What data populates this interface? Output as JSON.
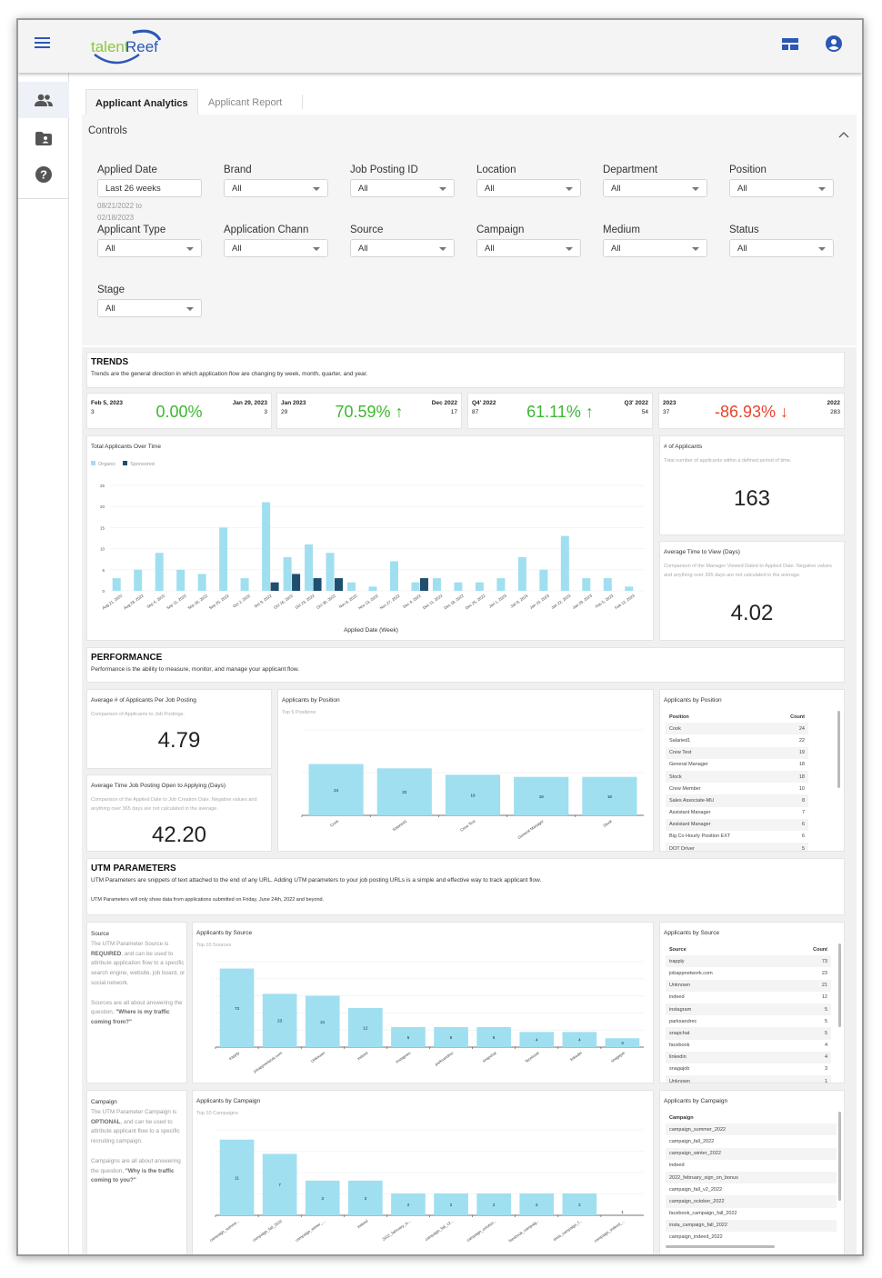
{
  "app": {
    "logo_part1": "talent",
    "logo_part2": "Reef",
    "colors": {
      "brand_blue": "#2b57b5",
      "logo_green": "#8cc63f",
      "organic": "#a0dff0",
      "sponsored": "#1f4e6e",
      "positive": "#3db730",
      "negative": "#e8442f"
    }
  },
  "header": {
    "icons": [
      "menu-icon",
      "layout-icon",
      "account-icon"
    ]
  },
  "sidebar": {
    "items": [
      {
        "icon": "people-icon",
        "active": true
      },
      {
        "icon": "folder-user-icon"
      },
      {
        "icon": "help-icon"
      }
    ]
  },
  "tabs": [
    {
      "label": "Applicant Analytics",
      "active": true
    },
    {
      "label": "Applicant Report"
    }
  ],
  "controls": {
    "title": "Controls",
    "applied_date": {
      "label": "Applied Date",
      "value": "Last 26 weeks",
      "range_from": "08/21/2022 to",
      "range_to": "02/18/2023"
    },
    "filters": [
      {
        "label": "Brand",
        "value": "All"
      },
      {
        "label": "Job Posting ID",
        "value": "All"
      },
      {
        "label": "Location",
        "value": "All"
      },
      {
        "label": "Department",
        "value": "All"
      },
      {
        "label": "Position",
        "value": "All"
      },
      {
        "label": "Applicant Type",
        "value": "All"
      },
      {
        "label": "Application Chann",
        "value": "All"
      },
      {
        "label": "Source",
        "value": "All"
      },
      {
        "label": "Campaign",
        "value": "All"
      },
      {
        "label": "Medium",
        "value": "All"
      },
      {
        "label": "Status",
        "value": "All"
      },
      {
        "label": "Stage",
        "value": "All"
      }
    ]
  },
  "trends": {
    "title": "TRENDS",
    "subtitle": "Trends are the general direction in which application flow are changing by week, month, quarter, and year.",
    "kpis": [
      {
        "cur_label": "Feb 5, 2023",
        "cur_value": "3",
        "change": "0.00%",
        "arrow": "",
        "prev_label": "Jan 29, 2023",
        "prev_value": "3",
        "dir": "flat"
      },
      {
        "cur_label": "Jan 2023",
        "cur_value": "29",
        "change": "70.59%",
        "arrow": "↑",
        "prev_label": "Dec 2022",
        "prev_value": "17",
        "dir": "up"
      },
      {
        "cur_label": "Q4' 2022",
        "cur_value": "87",
        "change": "61.11%",
        "arrow": "↑",
        "prev_label": "Q3' 2022",
        "prev_value": "54",
        "dir": "up"
      },
      {
        "cur_label": "2023",
        "cur_value": "37",
        "change": "-86.93%",
        "arrow": "↓",
        "prev_label": "2022",
        "prev_value": "283",
        "dir": "down"
      }
    ],
    "applicants": {
      "title": "# of Applicants",
      "subtitle": "Total number of applicants within a defined period of time.",
      "value": "163"
    },
    "time_to_view": {
      "title": "Average Time to View (Days)",
      "subtitle": "Comparison of the Manager Viewed Dated to Applied Date. Negative values and anything over 365 days are not calculated in the average.",
      "value": "4.02"
    }
  },
  "performance": {
    "title": "PERFORMANCE",
    "subtitle": "Performance is the ability to measure, monitor, and manage your applicant flow.",
    "avg_per_posting": {
      "title": "Average # of Applicants Per Job Posting",
      "subtitle": "Comparison of Applicants to Job Postings.",
      "value": "4.79"
    },
    "avg_open_to_apply": {
      "title": "Average Time Job Posting Open to Applying (Days)",
      "subtitle": "Comparison of the Applied Date to Job Creation Date. Negative values and anything over 365 days are not calculated in the average.",
      "value": "42.20"
    },
    "position_table": {
      "title": "Applicants by Position",
      "headers": [
        "Position",
        "Count"
      ],
      "rows": [
        [
          "Cook",
          "24"
        ],
        [
          "Salaried1",
          "22"
        ],
        [
          "Crew Test",
          "19"
        ],
        [
          "General Manager",
          "18"
        ],
        [
          "Stock",
          "18"
        ],
        [
          "Crew Member",
          "10"
        ],
        [
          "Sales Associate-MU",
          "8"
        ],
        [
          "Assistant Manager",
          "7"
        ],
        [
          "Assistant Manager",
          "6"
        ],
        [
          "Big Co Hourly Position EXT",
          "6"
        ],
        [
          "DOT Driver",
          "5"
        ]
      ]
    }
  },
  "utm": {
    "title": "UTM PARAMETERS",
    "subtitle": "UTM Parameters are snippets of text attached to the end of any URL. Adding UTM parameters to your job posting URLs is a simple and effective way to track applicant flow.",
    "note": "UTM Parameters will only show data from applications submitted on Friday, June 24th, 2022 and beyond.",
    "source_info": {
      "title": "Source",
      "p1a": "The UTM Parameter Source is ",
      "p1b": "REQUIRED",
      "p1c": ", and can be used to attribute application flow to a specific search engine, website, job board, or social network.",
      "p2a": "Sources are all about answering the question, ",
      "p2b": "\"Where is my traffic coming from?\""
    },
    "campaign_info": {
      "title": "Campaign",
      "p1a": "The UTM Parameter Campaign is ",
      "p1b": "OPTIONAL",
      "p1c": ", and can be used to attribute applicant flow to a specific recruiting campaign.",
      "p2a": "Campaigns are all about answering the question, ",
      "p2b": "\"Why is the traffic coming to you?\""
    },
    "source_table": {
      "title": "Applicants by Source",
      "headers": [
        "Source",
        "Count"
      ],
      "rows": [
        [
          "trapply",
          "73"
        ],
        [
          "jobappnetwork.com",
          "23"
        ],
        [
          "Unknown",
          "21"
        ],
        [
          "indeed",
          "12"
        ],
        [
          "instagram",
          "5"
        ],
        [
          "parksandrec",
          "5"
        ],
        [
          "snapchat",
          "5"
        ],
        [
          "facebook",
          "4"
        ],
        [
          "linkedin",
          "4"
        ],
        [
          "snagajob",
          "3"
        ],
        [
          "Unknown",
          "1"
        ]
      ]
    },
    "campaign_table": {
      "title": "Applicants by Campaign",
      "headers": [
        "Campaign"
      ],
      "rows": [
        [
          "campaign_summer_2022"
        ],
        [
          "campaign_fall_2022"
        ],
        [
          "campaign_winter_2022"
        ],
        [
          "indeed"
        ],
        [
          "2022_february_sign_on_bonus"
        ],
        [
          "campaign_fall_v2_2022"
        ],
        [
          "campaign_october_2022"
        ],
        [
          "facebook_campaign_fall_2022"
        ],
        [
          "insta_campaign_fall_2022"
        ],
        [
          "campaign_indeed_2022"
        ]
      ]
    }
  },
  "chart_data": [
    {
      "id": "overtime",
      "type": "bar",
      "title": "Total Applicants Over Time",
      "xlabel": "Applied Date (Week)",
      "ylabel": "",
      "ylim": [
        0,
        25
      ],
      "yticks": [
        0,
        5,
        10,
        15,
        20,
        25
      ],
      "legend": "top-left",
      "grid": true,
      "categories": [
        "Aug 21, 2022",
        "Aug 28, 2022",
        "Sep 4, 2022",
        "Sep 11, 2022",
        "Sep 18, 2022",
        "Sep 25, 2022",
        "Oct 2, 2022",
        "Oct 9, 2022",
        "Oct 16, 2022",
        "Oct 23, 2022",
        "Oct 30, 2022",
        "Nov 6, 2022",
        "Nov 13, 2022",
        "Nov 27, 2022",
        "Dec 4, 2022",
        "Dec 11, 2022",
        "Dec 18, 2022",
        "Dec 25, 2022",
        "Jan 1, 2023",
        "Jan 8, 2023",
        "Jan 15, 2023",
        "Jan 22, 2023",
        "Jan 29, 2023",
        "Feb 5, 2023",
        "Feb 12, 2023"
      ],
      "series": [
        {
          "name": "Organic",
          "values": [
            3,
            5,
            9,
            5,
            4,
            15,
            3,
            21,
            8,
            11,
            9,
            2,
            1,
            7,
            2,
            3,
            2,
            2,
            3,
            8,
            5,
            13,
            3,
            3,
            1
          ]
        },
        {
          "name": "Sponsored",
          "values": [
            0,
            0,
            0,
            0,
            0,
            0,
            0,
            2,
            4,
            3,
            3,
            0,
            0,
            0,
            3,
            0,
            0,
            0,
            0,
            0,
            0,
            0,
            0,
            0,
            0
          ]
        }
      ]
    },
    {
      "id": "position",
      "type": "bar",
      "title": "Applicants by Position",
      "subtitle": "Top 5 Positions",
      "ylim": [
        0,
        40
      ],
      "grid": true,
      "categories": [
        "Cook",
        "Salaried1",
        "Crew Test",
        "General Manager",
        "Stock"
      ],
      "values": [
        24,
        22,
        19,
        18,
        18
      ]
    },
    {
      "id": "source",
      "type": "bar",
      "title": "Applicants by Source",
      "subtitle": "Top 10 Sources",
      "yscale": "log",
      "ylim": [
        2,
        100
      ],
      "grid": true,
      "categories": [
        "trapply",
        "jobappnetwork.com",
        "Unknown",
        "indeed",
        "instagram",
        "parksandrec",
        "snapchat",
        "facebook",
        "linkedin",
        "snagajob"
      ],
      "values": [
        73,
        23,
        21,
        12,
        5,
        5,
        5,
        4,
        4,
        3
      ]
    },
    {
      "id": "campaign",
      "type": "bar",
      "title": "Applicants by Campaign",
      "subtitle": "Top 10 Campaigns",
      "yscale": "log",
      "ylim": [
        1,
        15
      ],
      "grid": true,
      "categories": [
        "campaign_summe...",
        "campaign_fall_2022",
        "campaign_winter_...",
        "indeed",
        "2022_february_si...",
        "campaign_fall_v2...",
        "campaign_october...",
        "facebook_campaig...",
        "insta_campaign_f...",
        "campaign_indeed_..."
      ],
      "values": [
        11,
        7,
        3,
        3,
        2,
        2,
        2,
        2,
        2,
        1
      ]
    }
  ]
}
